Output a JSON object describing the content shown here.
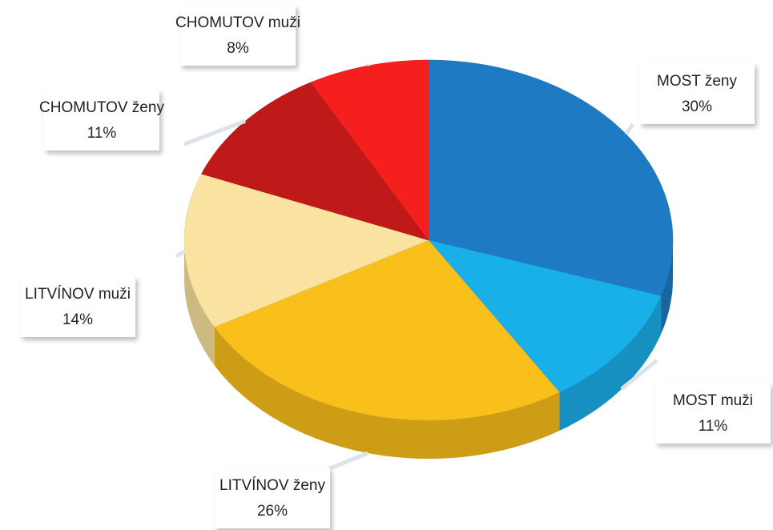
{
  "chart_data": {
    "type": "pie",
    "categories": [
      "MOST ženy",
      "MOST muži",
      "LITVÍNOV ženy",
      "LITVÍNOV muži",
      "CHOMUTOV ženy",
      "CHOMUTOV muži"
    ],
    "values": [
      30,
      11,
      26,
      14,
      11,
      8
    ],
    "value_labels": [
      "30%",
      "11%",
      "26%",
      "14%",
      "11%",
      "8%"
    ],
    "colors": [
      "#1e7bc3",
      "#19b0ea",
      "#f9bf1a",
      "#fae3a0",
      "#c0191a",
      "#f5201e"
    ]
  }
}
